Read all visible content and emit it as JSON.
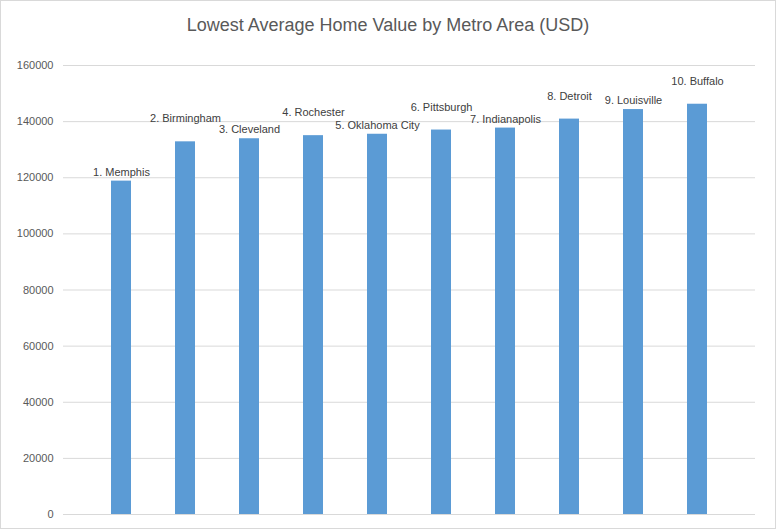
{
  "chart_data": {
    "type": "bar",
    "title": "Lowest Average Home Value by Metro Area (USD)",
    "categories": [
      "1. Memphis",
      "2. Birmingham",
      "3. Cleveland",
      "4. Rochester",
      "5. Oklahoma City",
      "6. Pittsburgh",
      "7. Indianapolis",
      "8. Detroit",
      "9. Louisville",
      "10. Buffalo"
    ],
    "values": [
      118800,
      132800,
      133900,
      135000,
      135500,
      137000,
      137700,
      140900,
      144300,
      146200
    ],
    "color": "#5b9bd5",
    "ylim": [
      0,
      160000
    ],
    "yticks": [
      0,
      20000,
      40000,
      60000,
      80000,
      100000,
      120000,
      140000,
      160000
    ],
    "grid": true,
    "tick_labels": "y"
  }
}
